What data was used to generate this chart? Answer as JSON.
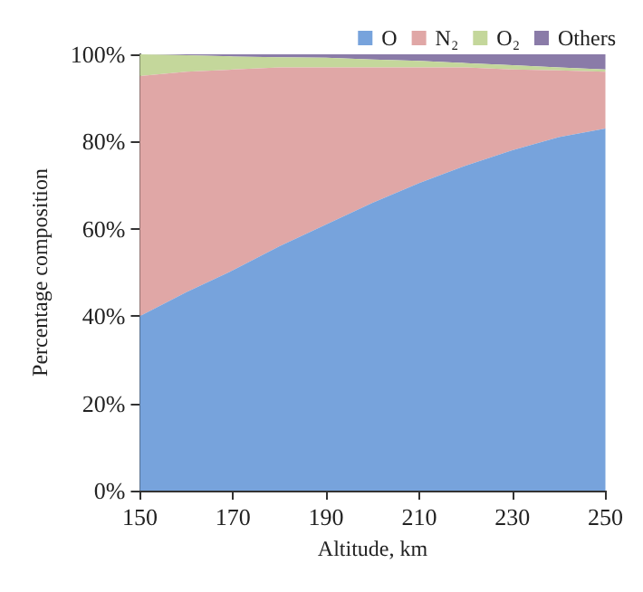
{
  "chart_data": {
    "type": "area",
    "stacked": true,
    "xlabel": "Altitude, km",
    "ylabel": "Percentage composition",
    "x": [
      150,
      160,
      170,
      180,
      190,
      200,
      210,
      220,
      230,
      240,
      250
    ],
    "series": [
      {
        "name": "O",
        "color": "#77a3dc",
        "values": [
          40,
          45.5,
          50.5,
          56,
          61,
          66,
          70.5,
          74.5,
          78,
          81,
          83
        ]
      },
      {
        "name": "N₂",
        "color": "#e0a7a6",
        "values": [
          55,
          50.5,
          46,
          41,
          36,
          31,
          26.5,
          22.5,
          18.5,
          15.3,
          13
        ]
      },
      {
        "name": "O₂",
        "color": "#c4d79b",
        "values": [
          5,
          3.8,
          3,
          2.3,
          2.2,
          1.8,
          1.5,
          1,
          1,
          0.7,
          0.5
        ]
      },
      {
        "name": "Others",
        "color": "#8a7ba8",
        "values": [
          0,
          0.2,
          0.5,
          0.7,
          0.8,
          1.2,
          1.5,
          2,
          2.5,
          3,
          3.5
        ]
      }
    ],
    "xlim": [
      150,
      250
    ],
    "xticks": [
      150,
      170,
      190,
      210,
      230,
      250
    ],
    "ylim": [
      0,
      100
    ],
    "yticks": [
      {
        "value": 0,
        "label": "0%"
      },
      {
        "value": 20,
        "label": "20%"
      },
      {
        "value": 40,
        "label": "40%"
      },
      {
        "value": 60,
        "label": "60%"
      },
      {
        "value": 80,
        "label": "80%"
      },
      {
        "value": 100,
        "label": "100%"
      }
    ],
    "grid": false,
    "legend": "top right"
  }
}
